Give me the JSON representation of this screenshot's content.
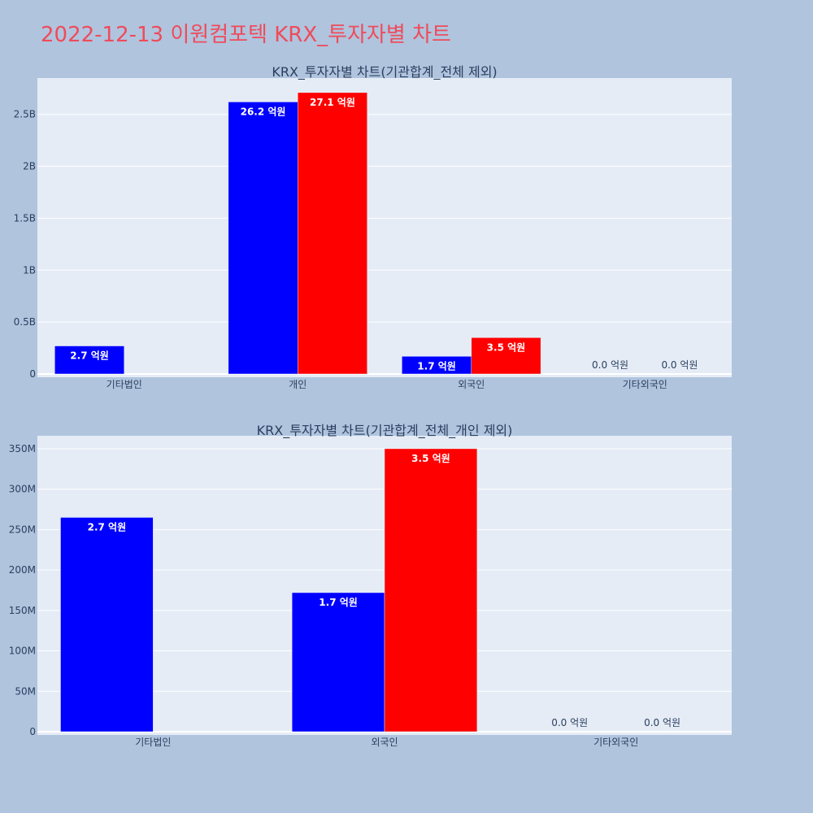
{
  "page": {
    "title": "2022-12-13 이원컴포텍 KRX_투자자별 차트"
  },
  "colors": {
    "background": "#b0c4de",
    "plot_bg": "#e5ecf6",
    "title": "#ef4b5a",
    "series_blue": "#0000ff",
    "series_red": "#ff0000",
    "text": "#2a3f5f"
  },
  "chart_data": [
    {
      "type": "bar",
      "title": "KRX_투자자별 차트(기관합계_전체 제외)",
      "categories": [
        "기타법인",
        "개인",
        "외국인",
        "기타외국인"
      ],
      "series": [
        {
          "color": "#0000ff",
          "values": [
            270000000,
            2620000000,
            170000000,
            0
          ],
          "labels": [
            "2.7 억원",
            "26.2 억원",
            "1.7 억원",
            "0.0 억원"
          ]
        },
        {
          "color": "#ff0000",
          "values": [
            0,
            2710000000,
            350000000,
            0
          ],
          "labels": [
            "",
            "27.1 억원",
            "3.5 억원",
            "0.0 억원"
          ]
        }
      ],
      "yticks": [
        {
          "value": 0,
          "label": "0"
        },
        {
          "value": 500000000,
          "label": "0.5B"
        },
        {
          "value": 1000000000,
          "label": "1B"
        },
        {
          "value": 1500000000,
          "label": "1.5B"
        },
        {
          "value": 2000000000,
          "label": "2B"
        },
        {
          "value": 2500000000,
          "label": "2.5B"
        }
      ],
      "ylim": [
        0,
        2850000000
      ],
      "grid": true
    },
    {
      "type": "bar",
      "title": "KRX_투자자별 차트(기관합계_전체_개인 제외)",
      "categories": [
        "기타법인",
        "외국인",
        "기타외국인"
      ],
      "series": [
        {
          "color": "#0000ff",
          "values": [
            265000000,
            172000000,
            0
          ],
          "labels": [
            "2.7 억원",
            "1.7 억원",
            "0.0 억원"
          ]
        },
        {
          "color": "#ff0000",
          "values": [
            0,
            350000000,
            0
          ],
          "labels": [
            "",
            "3.5 억원",
            "0.0 억원"
          ]
        }
      ],
      "yticks": [
        {
          "value": 0,
          "label": "0"
        },
        {
          "value": 50000000,
          "label": "50M"
        },
        {
          "value": 100000000,
          "label": "100M"
        },
        {
          "value": 150000000,
          "label": "150M"
        },
        {
          "value": 200000000,
          "label": "200M"
        },
        {
          "value": 250000000,
          "label": "250M"
        },
        {
          "value": 300000000,
          "label": "300M"
        },
        {
          "value": 350000000,
          "label": "350M"
        }
      ],
      "ylim": [
        0,
        366000000
      ],
      "grid": true
    }
  ]
}
